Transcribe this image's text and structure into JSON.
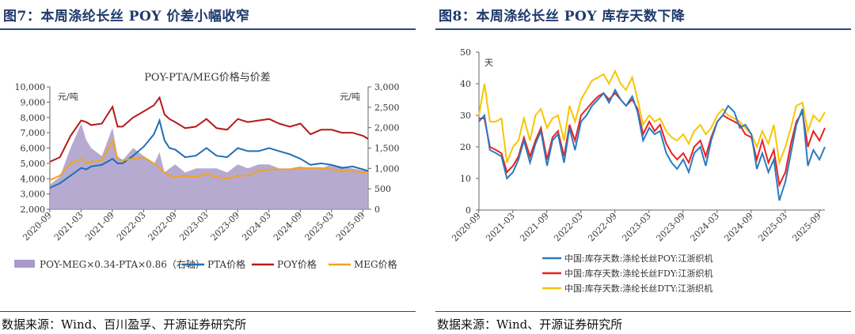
{
  "left": {
    "figure_title": "图7：本周涤纶长丝 POY 价差小幅收窄",
    "source": "数据来源：Wind、百川盈孚、开源证券研究所"
  },
  "right": {
    "figure_title": "图8：本周涤纶长丝 POY 库存天数下降",
    "source": "数据来源：Wind、开源证券研究所"
  },
  "colors": {
    "spread": "#a99bc9",
    "pta": "#1f6fb4",
    "poy": "#b61a1a",
    "meg": "#f2a31f",
    "inv_poy": "#2b7bbf",
    "inv_fdy": "#ee2020",
    "inv_dty": "#f7c600"
  },
  "chart_data": [
    {
      "type": "line",
      "title": "POY-PTA/MEG价格与价差",
      "ylabel_left": "元/吨",
      "ylabel_right": "元/吨",
      "ylim_left": [
        2000,
        10000
      ],
      "ylim_right": [
        0,
        3000
      ],
      "yticks_left": [
        "2,000",
        "3,000",
        "4,000",
        "5,000",
        "6,000",
        "7,000",
        "8,000",
        "9,000",
        "10,000"
      ],
      "yticks_right": [
        "0",
        "500",
        "1,000",
        "1,500",
        "2,000",
        "2,500",
        "3,000"
      ],
      "xticks": [
        "2020-09",
        "2021-03",
        "2021-09",
        "2022-03",
        "2022-09",
        "2023-03",
        "2023-09",
        "2024-03",
        "2024-09",
        "2025-03",
        "2025-09"
      ],
      "x": [
        2020.67,
        2020.83,
        2021.0,
        2021.17,
        2021.25,
        2021.33,
        2021.5,
        2021.67,
        2021.75,
        2021.83,
        2022.0,
        2022.17,
        2022.33,
        2022.42,
        2022.5,
        2022.58,
        2022.67,
        2022.83,
        2023.0,
        2023.17,
        2023.33,
        2023.5,
        2023.67,
        2023.83,
        2024.0,
        2024.17,
        2024.33,
        2024.5,
        2024.67,
        2024.83,
        2025.0,
        2025.17,
        2025.33,
        2025.5,
        2025.67,
        2025.75
      ],
      "series": [
        {
          "name": "POY-MEG×0.34-PTA×0.86（右轴）",
          "axis": "right",
          "kind": "area",
          "values": [
            600,
            800,
            1500,
            2100,
            1700,
            1500,
            1300,
            2000,
            1300,
            1200,
            1500,
            1300,
            1100,
            1400,
            900,
            1000,
            1100,
            900,
            1000,
            1000,
            1000,
            900,
            1100,
            1000,
            1100,
            1100,
            1000,
            1000,
            1050,
            1000,
            1000,
            1100,
            1050,
            1000,
            950,
            950
          ]
        },
        {
          "name": "PTA价格",
          "axis": "left",
          "values": [
            3400,
            3700,
            4200,
            4700,
            4600,
            4800,
            4900,
            5300,
            5000,
            5000,
            5500,
            6100,
            6900,
            7800,
            6500,
            6000,
            5900,
            5400,
            5500,
            6000,
            5500,
            5400,
            6000,
            5800,
            5800,
            6000,
            5800,
            5600,
            5300,
            4900,
            5000,
            4900,
            4700,
            4800,
            4600,
            4500
          ]
        },
        {
          "name": "POY价格",
          "axis": "left",
          "values": [
            5100,
            5400,
            6800,
            7800,
            7700,
            7500,
            7600,
            8700,
            7400,
            7400,
            8000,
            8400,
            8800,
            9300,
            8200,
            7900,
            7700,
            7300,
            7400,
            7900,
            7300,
            7200,
            7900,
            7700,
            7800,
            7900,
            7600,
            7400,
            7600,
            6900,
            7200,
            7200,
            7000,
            7000,
            6800,
            6600
          ]
        },
        {
          "name": "MEG价格",
          "axis": "left",
          "values": [
            3900,
            4200,
            5000,
            5300,
            5000,
            5100,
            5200,
            6500,
            5300,
            5200,
            5300,
            5400,
            5000,
            4700,
            4400,
            4200,
            4100,
            4200,
            4100,
            4300,
            4100,
            4000,
            4200,
            4200,
            4500,
            4600,
            4600,
            4600,
            4700,
            4700,
            4700,
            4600,
            4500,
            4500,
            4400,
            4400
          ]
        }
      ]
    },
    {
      "type": "line",
      "title": "",
      "ylabel": "天",
      "ylim": [
        0,
        50
      ],
      "yticks": [
        "0",
        "10",
        "20",
        "30",
        "40",
        "50"
      ],
      "xticks": [
        "2020-09",
        "2021-03",
        "2021-09",
        "2022-03",
        "2022-09",
        "2023-03",
        "2023-09",
        "2024-03",
        "2024-09",
        "2025-03",
        "2025-09"
      ],
      "x": [
        2020.67,
        2020.75,
        2020.83,
        2020.92,
        2021.0,
        2021.08,
        2021.17,
        2021.25,
        2021.33,
        2021.42,
        2021.5,
        2021.58,
        2021.67,
        2021.75,
        2021.83,
        2021.92,
        2022.0,
        2022.08,
        2022.17,
        2022.25,
        2022.33,
        2022.42,
        2022.5,
        2022.58,
        2022.67,
        2022.75,
        2022.83,
        2022.92,
        2023.0,
        2023.08,
        2023.17,
        2023.25,
        2023.33,
        2023.42,
        2023.5,
        2023.58,
        2023.67,
        2023.75,
        2023.83,
        2023.92,
        2024.0,
        2024.08,
        2024.17,
        2024.25,
        2024.33,
        2024.42,
        2024.5,
        2024.58,
        2024.67,
        2024.75,
        2024.83,
        2024.92,
        2025.0,
        2025.08,
        2025.17,
        2025.25,
        2025.33,
        2025.42,
        2025.5,
        2025.58,
        2025.67,
        2025.75
      ],
      "series": [
        {
          "name": "中国:库存天数:涤纶长丝POY:江浙织机",
          "values": [
            28,
            30,
            19,
            18,
            17,
            10,
            12,
            16,
            22,
            15,
            21,
            25,
            14,
            22,
            24,
            15,
            26,
            19,
            28,
            30,
            33,
            35,
            37,
            34,
            38,
            35,
            33,
            36,
            31,
            22,
            26,
            24,
            25,
            18,
            15,
            13,
            16,
            12,
            18,
            20,
            14,
            22,
            28,
            30,
            33,
            31,
            26,
            27,
            24,
            13,
            18,
            12,
            16,
            3,
            9,
            18,
            27,
            32,
            14,
            19,
            16,
            20
          ]
        },
        {
          "name": "中国:库存天数:涤纶长丝FDY:江浙织机",
          "values": [
            29,
            29,
            20,
            19,
            18,
            12,
            14,
            17,
            23,
            17,
            22,
            26,
            16,
            23,
            25,
            17,
            27,
            22,
            30,
            32,
            34,
            36,
            37,
            35,
            37,
            35,
            33,
            35,
            32,
            24,
            28,
            25,
            27,
            21,
            18,
            16,
            18,
            15,
            20,
            22,
            17,
            23,
            28,
            30,
            29,
            28,
            27,
            24,
            23,
            16,
            22,
            15,
            19,
            8,
            12,
            21,
            28,
            31,
            20,
            25,
            22,
            26
          ]
        },
        {
          "name": "中国:库存天数:涤纶长丝DTY:江浙织机",
          "values": [
            30,
            40,
            28,
            28,
            29,
            15,
            20,
            22,
            29,
            22,
            30,
            32,
            26,
            29,
            30,
            22,
            33,
            28,
            35,
            38,
            41,
            42,
            43,
            40,
            44,
            40,
            38,
            42,
            35,
            27,
            30,
            28,
            29,
            25,
            23,
            22,
            24,
            21,
            25,
            27,
            24,
            26,
            30,
            32,
            30,
            29,
            28,
            26,
            24,
            20,
            25,
            21,
            27,
            15,
            20,
            26,
            33,
            34,
            25,
            30,
            28,
            31
          ]
        }
      ]
    }
  ]
}
